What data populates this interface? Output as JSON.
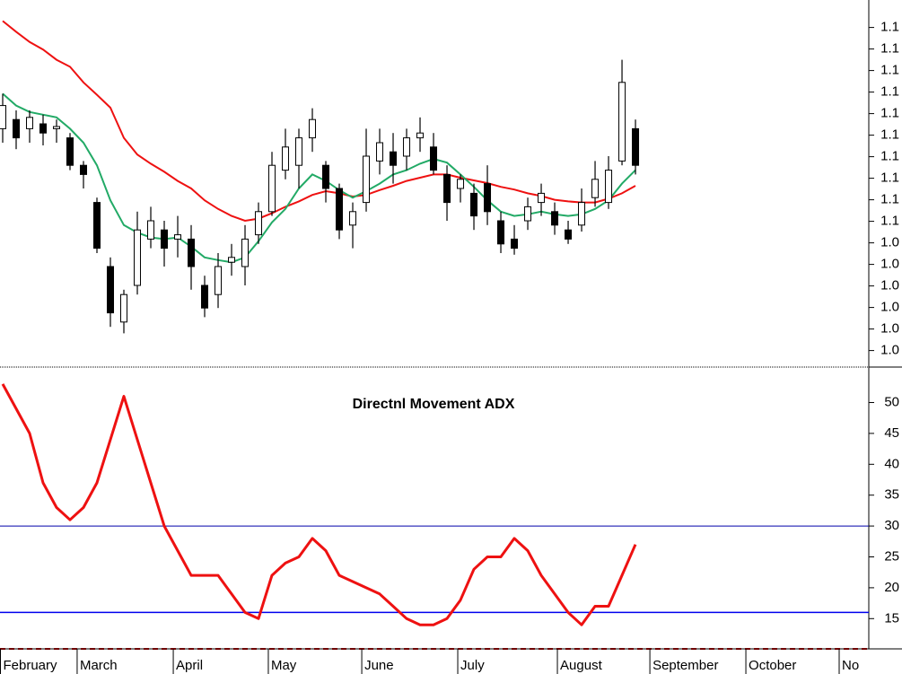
{
  "chart_data": [
    {
      "type": "candlestick",
      "open": [
        1.0692,
        1.0709,
        1.0692,
        1.0701,
        1.0692,
        1.0675,
        1.0624,
        1.0555,
        1.0436,
        1.0333,
        1.0401,
        1.0487,
        1.0504,
        1.0487,
        1.0487,
        1.0401,
        1.0384,
        1.0444,
        1.0436,
        1.0495,
        1.0538,
        1.0615,
        1.0624,
        1.0675,
        1.0624,
        1.0581,
        1.0513,
        1.0555,
        1.0632,
        1.0649,
        1.0641,
        1.0675,
        1.0658,
        1.0607,
        1.0581,
        1.0572,
        1.059,
        1.0521,
        1.0487,
        1.0521,
        1.0555,
        1.0538,
        1.0504,
        1.0513,
        1.0564,
        1.0555,
        1.0632,
        1.0692
      ],
      "high": [
        1.0757,
        1.0726,
        1.0726,
        1.0718,
        1.0709,
        1.0684,
        1.0632,
        1.0564,
        1.0453,
        1.0393,
        1.0538,
        1.0547,
        1.0521,
        1.053,
        1.0513,
        1.0419,
        1.0461,
        1.0478,
        1.0513,
        1.0555,
        1.0649,
        1.0692,
        1.0692,
        1.073,
        1.0632,
        1.059,
        1.0555,
        1.0692,
        1.0692,
        1.0684,
        1.0692,
        1.0713,
        1.0684,
        1.0624,
        1.0607,
        1.059,
        1.0624,
        1.0538,
        1.0513,
        1.0564,
        1.059,
        1.0555,
        1.0521,
        1.0581,
        1.0632,
        1.0641,
        1.082,
        1.0709
      ],
      "low": [
        1.0666,
        1.0654,
        1.0666,
        1.0661,
        1.0666,
        1.0615,
        1.0581,
        1.0461,
        1.0324,
        1.0312,
        1.0384,
        1.047,
        1.0436,
        1.0453,
        1.0393,
        1.0342,
        1.0359,
        1.0419,
        1.0401,
        1.0478,
        1.053,
        1.0598,
        1.0581,
        1.0649,
        1.0555,
        1.0487,
        1.047,
        1.0538,
        1.0607,
        1.059,
        1.0615,
        1.0649,
        1.0607,
        1.0521,
        1.0555,
        1.0504,
        1.0513,
        1.0461,
        1.0458,
        1.0504,
        1.053,
        1.0495,
        1.0478,
        1.0501,
        1.0547,
        1.0543,
        1.0624,
        1.0607
      ],
      "close": [
        1.0735,
        1.0675,
        1.0713,
        1.0684,
        1.0696,
        1.0624,
        1.0607,
        1.047,
        1.035,
        1.0384,
        1.0504,
        1.0521,
        1.047,
        1.0495,
        1.0436,
        1.0359,
        1.0436,
        1.0453,
        1.0487,
        1.0538,
        1.0624,
        1.0658,
        1.0675,
        1.0709,
        1.0581,
        1.0504,
        1.0538,
        1.0641,
        1.0666,
        1.0624,
        1.0675,
        1.0684,
        1.0615,
        1.0555,
        1.0598,
        1.053,
        1.0538,
        1.0478,
        1.047,
        1.0547,
        1.0572,
        1.0513,
        1.0487,
        1.0555,
        1.0598,
        1.0615,
        1.0778,
        1.0624
      ],
      "lines": [
        {
          "color": "#ee1111",
          "values": [
            1.0892,
            1.0872,
            1.0853,
            1.0839,
            1.082,
            1.0807,
            1.0778,
            1.0755,
            1.0731,
            1.0675,
            1.0644,
            1.0627,
            1.0612,
            1.0595,
            1.0581,
            1.0559,
            1.0543,
            1.053,
            1.0521,
            1.0525,
            1.0535,
            1.0547,
            1.0557,
            1.0569,
            1.0576,
            1.0572,
            1.0566,
            1.0569,
            1.0578,
            1.0586,
            1.0595,
            1.0601,
            1.0607,
            1.0607,
            1.0601,
            1.0596,
            1.0591,
            1.0584,
            1.0579,
            1.0572,
            1.0567,
            1.056,
            1.0557,
            1.0555,
            1.0555,
            1.0562,
            1.0572,
            1.0586
          ]
        },
        {
          "color": "#22aa66",
          "values": [
            1.0757,
            1.0735,
            1.0723,
            1.0718,
            1.0713,
            1.0692,
            1.0666,
            1.0624,
            1.0559,
            1.0513,
            1.0499,
            1.049,
            1.0487,
            1.049,
            1.0473,
            1.0453,
            1.0448,
            1.0444,
            1.0453,
            1.0483,
            1.0518,
            1.0543,
            1.0581,
            1.0607,
            1.0595,
            1.0578,
            1.0564,
            1.0576,
            1.059,
            1.0607,
            1.0615,
            1.0627,
            1.0636,
            1.0629,
            1.0607,
            1.0584,
            1.0559,
            1.0538,
            1.053,
            1.0533,
            1.0538,
            1.0533,
            1.053,
            1.0533,
            1.0543,
            1.0559,
            1.059,
            1.0615
          ]
        }
      ],
      "xlim": [
        -0.2,
        64.33
      ],
      "ylim": [
        1.0251,
        1.0931
      ],
      "yticks": [
        {
          "value": 1.088,
          "label": "1.1"
        },
        {
          "value": 1.084,
          "label": "1.1"
        },
        {
          "value": 1.08,
          "label": "1.1"
        },
        {
          "value": 1.076,
          "label": "1.1"
        },
        {
          "value": 1.072,
          "label": "1.1"
        },
        {
          "value": 1.068,
          "label": "1.1"
        },
        {
          "value": 1.064,
          "label": "1.1"
        },
        {
          "value": 1.06,
          "label": "1.1"
        },
        {
          "value": 1.056,
          "label": "1.1"
        },
        {
          "value": 1.052,
          "label": "1.1"
        },
        {
          "value": 1.048,
          "label": "1.0"
        },
        {
          "value": 1.044,
          "label": "1.0"
        },
        {
          "value": 1.04,
          "label": "1.0"
        },
        {
          "value": 1.036,
          "label": "1.0"
        },
        {
          "value": 1.032,
          "label": "1.0"
        },
        {
          "value": 1.028,
          "label": "1.0"
        }
      ]
    },
    {
      "type": "line",
      "title": "Directnl Movement ADX",
      "color": "#ee1111",
      "values": [
        53,
        49,
        45,
        37,
        33,
        31,
        33,
        37,
        44,
        51,
        44,
        37,
        30,
        26,
        22,
        22,
        22,
        19,
        16,
        15,
        22,
        24,
        25,
        28,
        26,
        22,
        21,
        20,
        19,
        17,
        15,
        14,
        14,
        15,
        18,
        23,
        25,
        25,
        28,
        26,
        22,
        19,
        16,
        14,
        17,
        17,
        22,
        27
      ],
      "hlines": [
        {
          "value": 30,
          "color": "#0000aa"
        },
        {
          "value": 16,
          "color": "#0000ee"
        }
      ],
      "xlim": [
        -0.2,
        64.33
      ],
      "ylim": [
        10.1,
        55.6
      ],
      "yticks": [
        15,
        20,
        25,
        30,
        35,
        40,
        45,
        50
      ],
      "xticks": [
        {
          "value": -0.2,
          "label": "February"
        },
        {
          "value": 5.53,
          "label": "March"
        },
        {
          "value": 12.67,
          "label": "April"
        },
        {
          "value": 19.73,
          "label": "May"
        },
        {
          "value": 26.67,
          "label": "June"
        },
        {
          "value": 33.8,
          "label": "July"
        },
        {
          "value": 41.2,
          "label": "August"
        },
        {
          "value": 48.07,
          "label": "September"
        },
        {
          "value": 55.2,
          "label": "October"
        },
        {
          "value": 62.13,
          "label": "No"
        }
      ]
    }
  ]
}
